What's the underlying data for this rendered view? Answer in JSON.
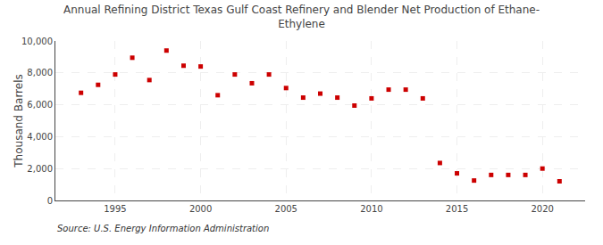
{
  "chart_data": {
    "type": "scatter",
    "title": "Annual Refining District Texas Gulf Coast Refinery and Blender Net Production of Ethane-\nEthylene",
    "ylabel": "Thousand Barrels",
    "annotations": [
      "Source: U.S. Energy Information Administration"
    ],
    "x": [
      1993,
      1994,
      1995,
      1996,
      1997,
      1998,
      1999,
      2000,
      2001,
      2002,
      2003,
      2004,
      2005,
      2006,
      2007,
      2008,
      2009,
      2010,
      2011,
      2012,
      2013,
      2014,
      2015,
      2016,
      2017,
      2018,
      2019,
      2020,
      2021
    ],
    "values": [
      6750,
      7250,
      7900,
      8950,
      7550,
      9400,
      8450,
      8400,
      6600,
      7900,
      7350,
      7900,
      7050,
      6450,
      6700,
      6450,
      5950,
      6400,
      6950,
      6950,
      6400,
      2350,
      1700,
      1250,
      1600,
      1600,
      1600,
      2000,
      1200
    ],
    "color": "#cc0000",
    "marker": "square",
    "xlim": [
      1991.5,
      2022.5
    ],
    "xticks": [
      1995,
      2000,
      2005,
      2010,
      2015,
      2020
    ],
    "ylim": [
      0,
      10000
    ],
    "yticks": [
      0,
      {
        "value": 2000,
        "label": "2,000"
      },
      {
        "value": 4000,
        "label": "4,000"
      },
      {
        "value": 6000,
        "label": "6,000"
      },
      {
        "value": 8000,
        "label": "8,000"
      },
      {
        "value": 10000,
        "label": "10,000"
      }
    ],
    "grid": true
  }
}
